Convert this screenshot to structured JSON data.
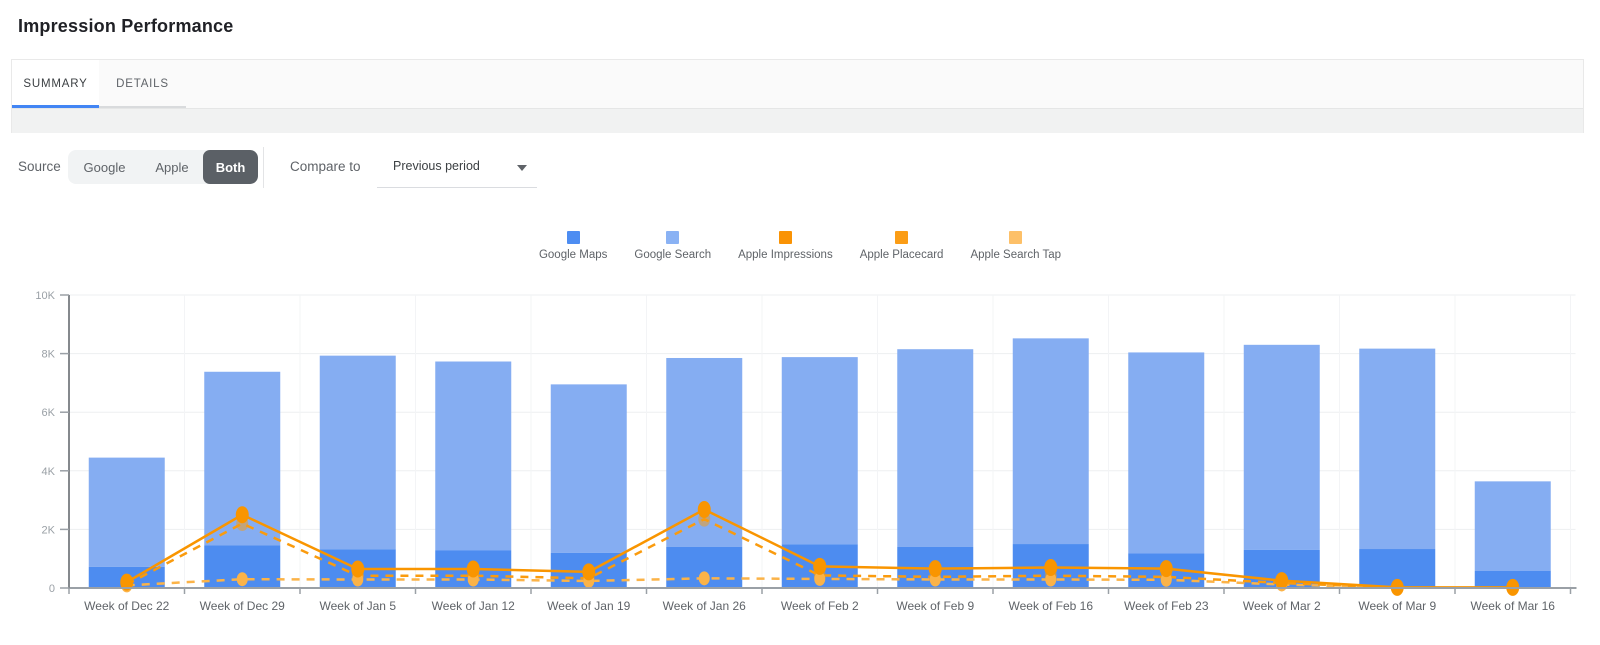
{
  "header": {
    "title": "Impression Performance"
  },
  "tabs": [
    {
      "label": "SUMMARY",
      "active": true
    },
    {
      "label": "DETAILS",
      "active": false
    }
  ],
  "controls": {
    "source_label": "Source",
    "source_options": [
      {
        "label": "Google",
        "selected": false
      },
      {
        "label": "Apple",
        "selected": false
      },
      {
        "label": "Both",
        "selected": true
      }
    ],
    "compare_label": "Compare to",
    "compare_value": "Previous period"
  },
  "colors": {
    "tab_active_underline": "#4285F4",
    "segment_selected_bg": "#5B6066",
    "axis_line": "#9AA0A6",
    "y_axis_line": "#85898D",
    "grid_line": "#EDEFF1",
    "vertical_grid_line": "#F3F4F6",
    "x_label": "#5F6368",
    "y_label": "#9AA0A6"
  },
  "chart_data": {
    "type": "bar",
    "subtype": "stacked-bars-with-line-overlay",
    "categories": [
      "Week of Dec 22",
      "Week of Dec 29",
      "Week of Jan 5",
      "Week of Jan 12",
      "Week of Jan 19",
      "Week of Jan 26",
      "Week of Feb 2",
      "Week of Feb 9",
      "Week of Feb 16",
      "Week of Feb 23",
      "Week of Mar 2",
      "Week of Mar 9",
      "Week of Mar 16"
    ],
    "series": [
      {
        "name": "Google Maps",
        "type": "bar",
        "stack": "google",
        "color": "#4D8CF0",
        "legend_color": "#4D8DF2",
        "values": [
          720,
          1450,
          1320,
          1290,
          1200,
          1400,
          1490,
          1400,
          1500,
          1180,
          1300,
          1330,
          590
        ]
      },
      {
        "name": "Google Search",
        "type": "bar",
        "stack": "google",
        "color": "#85ADF2",
        "legend_color": "#8AB2F4",
        "values": [
          3730,
          5930,
          6610,
          6440,
          5750,
          6450,
          6390,
          6750,
          7020,
          6860,
          7000,
          6840,
          3050
        ]
      },
      {
        "name": "Apple Impressions",
        "type": "line",
        "style": "solid",
        "color": "#F99500",
        "legend_color": "#FA9304",
        "values": [
          200,
          2500,
          650,
          650,
          550,
          2680,
          740,
          660,
          700,
          660,
          250,
          20,
          20
        ]
      },
      {
        "name": "Apple Placecard",
        "type": "line",
        "style": "dashed",
        "color": "#FA9B0E",
        "legend_color": "#FB9D16",
        "values": [
          120,
          2200,
          420,
          420,
          330,
          2350,
          430,
          380,
          420,
          380,
          170,
          10,
          10
        ]
      },
      {
        "name": "Apple Search Tap",
        "type": "line",
        "style": "dashed",
        "color": "#FBB348",
        "legend_color": "#FDC068",
        "values": [
          90,
          300,
          290,
          290,
          240,
          330,
          310,
          290,
          290,
          280,
          120,
          10,
          10
        ]
      }
    ],
    "ylim": [
      0,
      10000
    ],
    "yticks": [
      {
        "value": 0,
        "label": "0"
      },
      {
        "value": 2000,
        "label": "2K"
      },
      {
        "value": 4000,
        "label": "4K"
      },
      {
        "value": 6000,
        "label": "6K"
      },
      {
        "value": 8000,
        "label": "8K"
      },
      {
        "value": 10000,
        "label": "10K"
      }
    ],
    "legend_position": "top-center",
    "grid": true
  }
}
